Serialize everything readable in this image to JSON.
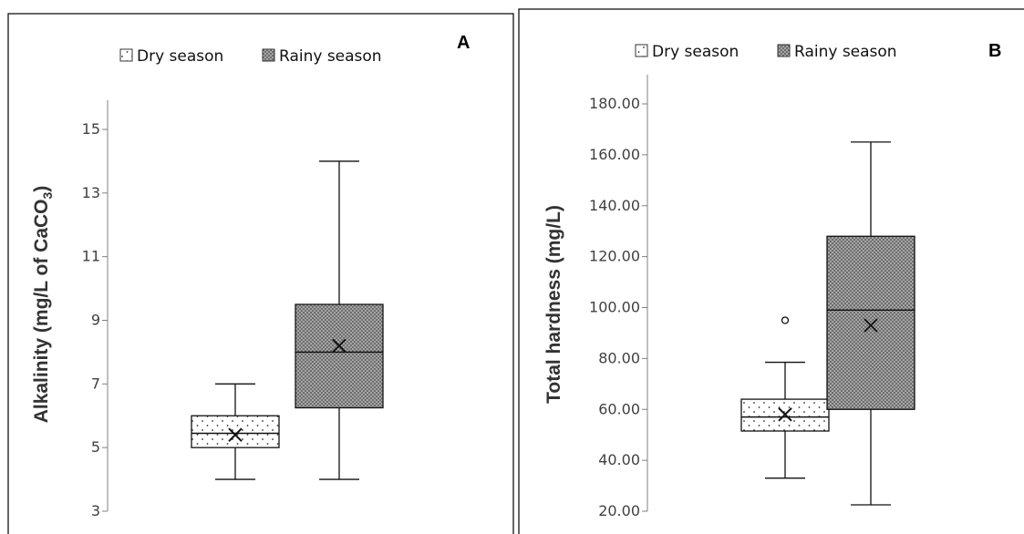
{
  "chart_data": [
    {
      "type": "box",
      "panel_label": "A",
      "ylabel": "Alkalinity (mg/L of CaCO",
      "ylabel_subscript": "3",
      "ylabel_suffix": ")",
      "ylim": [
        3,
        15
      ],
      "yticks": [
        3,
        5,
        7,
        9,
        11,
        13,
        15
      ],
      "ytick_labels": [
        "3",
        "5",
        "7",
        "9",
        "11",
        "13",
        "15"
      ],
      "legend_position": "top",
      "series": [
        {
          "name": "Dry season",
          "min": 4,
          "q1": 5,
          "median": 5.45,
          "q3": 6,
          "max": 7,
          "mean": 5.4,
          "outliers": []
        },
        {
          "name": "Rainy season",
          "min": 4,
          "q1": 6.25,
          "median": 8,
          "q3": 9.5,
          "max": 14,
          "mean": 8.2,
          "outliers": []
        }
      ]
    },
    {
      "type": "box",
      "panel_label": "B",
      "ylabel": "Total hardness (mg/L)",
      "ylabel_subscript": "",
      "ylabel_suffix": "",
      "ylim": [
        20,
        180
      ],
      "yticks": [
        20,
        40,
        60,
        80,
        100,
        120,
        140,
        160,
        180
      ],
      "ytick_labels": [
        "20.00",
        "40.00",
        "60.00",
        "80.00",
        "100.00",
        "120.00",
        "140.00",
        "160.00",
        "180.00"
      ],
      "legend_position": "top",
      "series": [
        {
          "name": "Dry season",
          "min": 33,
          "q1": 51.5,
          "median": 57,
          "q3": 64,
          "max": 78.5,
          "mean": 58,
          "outliers": [
            95
          ]
        },
        {
          "name": "Rainy season",
          "min": 22.5,
          "q1": 60,
          "median": 99,
          "q3": 128,
          "max": 165,
          "mean": 93,
          "outliers": []
        }
      ]
    }
  ],
  "colors": {
    "dry_fill": "#ffffff",
    "rainy_fill": "#7a7a7a",
    "line": "#111111"
  }
}
